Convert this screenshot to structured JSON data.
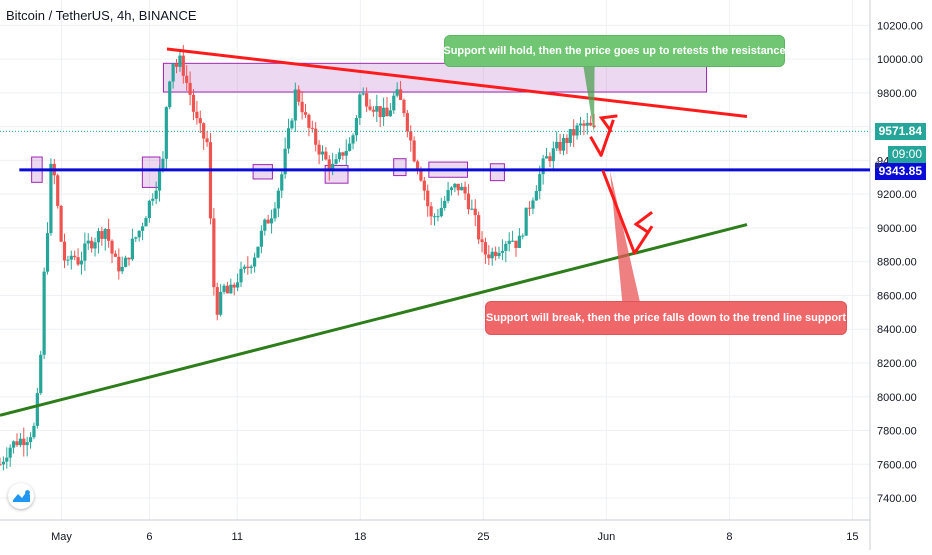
{
  "header": {
    "title": "Bitcoin / TetherUS, 4h, BINANCE"
  },
  "price_labels": {
    "last": "9571.84",
    "countdown": "09:00",
    "level": "9343.85",
    "level_marker": "9"
  },
  "callouts": {
    "green": "Support will hold, then the price goes up to retests the resistance",
    "red": "Support will break, then the price falls down to the trend line support"
  },
  "colors": {
    "up": "#26a69a",
    "down": "#ef5350",
    "resistance": "#ff1b1b",
    "support": "#0b0bd8",
    "trend": "#2d7d1a",
    "zone": "#9c27b0",
    "last_price": "#26a69a"
  },
  "chart_data": {
    "type": "candlestick",
    "title": "Bitcoin / TetherUS, 4h, BINANCE",
    "yaxis": {
      "ticks": [
        10200,
        10000,
        9800,
        9600,
        9400,
        9200,
        9000,
        8800,
        8600,
        8400,
        8200,
        8000,
        7800,
        7600,
        7400
      ],
      "labels": [
        "10200.00",
        "10000.00",
        "9800.00",
        "9600.00",
        "9400.00",
        "9200.00",
        "9000.00",
        "8800.00",
        "8600.00",
        "8400.00",
        "8200.00",
        "8000.00",
        "7800.00",
        "7600.00",
        "7400.00"
      ],
      "range": [
        7270,
        10350
      ]
    },
    "xaxis": {
      "ticks": [
        {
          "x": 30,
          "label": "May"
        },
        {
          "x": 35,
          "label": "6"
        },
        {
          "x": 40,
          "label": "11"
        },
        {
          "x": 47,
          "label": "18"
        },
        {
          "x": 54,
          "label": "25"
        },
        {
          "x": 61,
          "label": "Jun"
        },
        {
          "x": 68,
          "label": "8"
        },
        {
          "x": 75,
          "label": "15"
        }
      ],
      "range": [
        26.5,
        76
      ]
    },
    "last_price": 9571.84,
    "support_level": 9343.85,
    "closes": [
      [
        26.5,
        7600
      ],
      [
        27,
        7700
      ],
      [
        27.5,
        7740
      ],
      [
        28,
        7760
      ],
      [
        28.5,
        7820
      ],
      [
        28.8,
        8200
      ],
      [
        29,
        8700
      ],
      [
        29.2,
        9000
      ],
      [
        29.4,
        9350
      ],
      [
        29.6,
        9300
      ],
      [
        29.8,
        9100
      ],
      [
        30,
        8900
      ],
      [
        30.3,
        8750
      ],
      [
        30.6,
        8850
      ],
      [
        31,
        8800
      ],
      [
        31.5,
        8900
      ],
      [
        32,
        8950
      ],
      [
        32.5,
        9000
      ],
      [
        33,
        8800
      ],
      [
        33.5,
        8750
      ],
      [
        34,
        8900
      ],
      [
        34.5,
        9000
      ],
      [
        35,
        9150
      ],
      [
        35.5,
        9300
      ],
      [
        35.8,
        9400
      ],
      [
        36,
        9800
      ],
      [
        36.3,
        10000
      ],
      [
        36.6,
        9950
      ],
      [
        36.8,
        10000
      ],
      [
        37,
        9900
      ],
      [
        37.3,
        9800
      ],
      [
        37.6,
        9650
      ],
      [
        38,
        9550
      ],
      [
        38.3,
        9500
      ],
      [
        38.6,
        8700
      ],
      [
        38.9,
        8500
      ],
      [
        39.2,
        8650
      ],
      [
        39.5,
        8600
      ],
      [
        39.8,
        8650
      ],
      [
        40,
        8700
      ],
      [
        40.5,
        8750
      ],
      [
        41,
        8850
      ],
      [
        41.5,
        9000
      ],
      [
        42,
        9100
      ],
      [
        42.5,
        9300
      ],
      [
        43,
        9600
      ],
      [
        43.3,
        9800
      ],
      [
        43.6,
        9750
      ],
      [
        44,
        9600
      ],
      [
        44.5,
        9500
      ],
      [
        45,
        9400
      ],
      [
        45.5,
        9350
      ],
      [
        46,
        9450
      ],
      [
        46.5,
        9500
      ],
      [
        47,
        9800
      ],
      [
        47.5,
        9750
      ],
      [
        48,
        9700
      ],
      [
        48.5,
        9650
      ],
      [
        49,
        9800
      ],
      [
        49.5,
        9700
      ],
      [
        50,
        9450
      ],
      [
        50.5,
        9300
      ],
      [
        51,
        9050
      ],
      [
        51.5,
        9100
      ],
      [
        52,
        9200
      ],
      [
        52.5,
        9250
      ],
      [
        53,
        9200
      ],
      [
        53.5,
        9050
      ],
      [
        54,
        8850
      ],
      [
        54.5,
        8850
      ],
      [
        55,
        8900
      ],
      [
        55.5,
        8950
      ],
      [
        56,
        8900
      ],
      [
        56.5,
        9100
      ],
      [
        57,
        9250
      ],
      [
        57.5,
        9400
      ],
      [
        58,
        9450
      ],
      [
        58.5,
        9500
      ],
      [
        59,
        9550
      ],
      [
        59.5,
        9600
      ],
      [
        60,
        9600
      ],
      [
        60.3,
        9571.84
      ]
    ],
    "annotations": {
      "resistance_line": {
        "from": [
          36,
          10060
        ],
        "to": [
          69,
          9660
        ]
      },
      "support_line": {
        "y": 9343.85
      },
      "trend_line": {
        "from": [
          26.5,
          7890
        ],
        "to": [
          69,
          9020
        ]
      },
      "resistance_zone": {
        "x": [
          35.8,
          66.7
        ],
        "y": [
          9805,
          9975
        ]
      },
      "support_zones": [
        {
          "x": [
            28.3,
            28.9
          ],
          "y": [
            9270,
            9420
          ]
        },
        {
          "x": [
            34.6,
            35.6
          ],
          "y": [
            9240,
            9420
          ]
        },
        {
          "x": [
            40.9,
            42.0
          ],
          "y": [
            9290,
            9375
          ]
        },
        {
          "x": [
            45.0,
            46.3
          ],
          "y": [
            9265,
            9370
          ]
        },
        {
          "x": [
            48.9,
            49.6
          ],
          "y": [
            9310,
            9410
          ]
        },
        {
          "x": [
            50.9,
            53.1
          ],
          "y": [
            9300,
            9390
          ]
        },
        {
          "x": [
            54.4,
            55.2
          ],
          "y": [
            9280,
            9380
          ]
        }
      ],
      "arrows": [
        {
          "color": "red",
          "points": [
            [
              60.1,
              9540
            ],
            [
              60.7,
              9430
            ],
            [
              61.4,
              9640
            ]
          ]
        },
        {
          "color": "red",
          "points": [
            [
              60.8,
              9340
            ],
            [
              62.6,
              8850
            ],
            [
              63.6,
              9010
            ]
          ]
        }
      ]
    }
  }
}
